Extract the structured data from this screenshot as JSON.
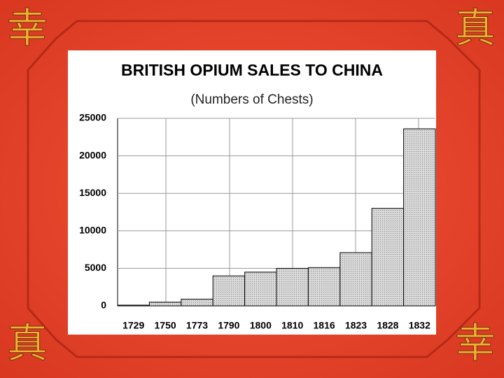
{
  "decorations": [
    "幸",
    "真",
    "真",
    "幸"
  ],
  "chart_data": {
    "type": "bar",
    "title": "BRITISH OPIUM SALES TO CHINA",
    "subtitle": "(Numbers of Chests)",
    "categories": [
      "1729",
      "1750",
      "1773",
      "1790",
      "1800",
      "1810",
      "1816",
      "1823",
      "1828",
      "1832"
    ],
    "values": [
      100,
      500,
      900,
      4000,
      4500,
      5000,
      5100,
      7100,
      13000,
      23600
    ],
    "color": "#c4c4c4",
    "ylim": [
      0,
      25000
    ],
    "yticks": [
      0,
      5000,
      10000,
      15000,
      20000,
      25000
    ],
    "grid": true
  }
}
